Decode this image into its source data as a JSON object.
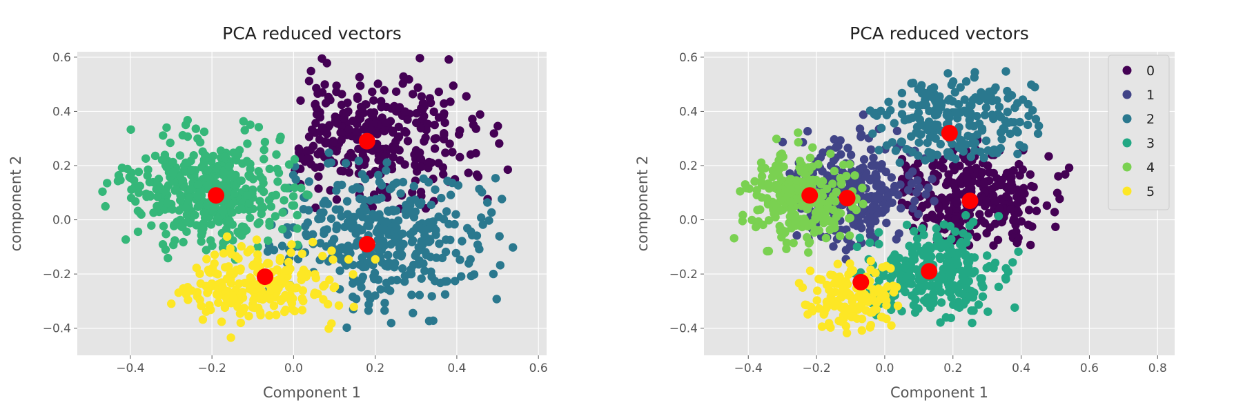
{
  "chart_data": [
    {
      "type": "scatter",
      "title": "PCA reduced vectors",
      "xlabel": "Component 1",
      "ylabel": "component 2",
      "xlim": [
        -0.53,
        0.62
      ],
      "ylim": [
        -0.5,
        0.62
      ],
      "xticks": [
        "−0.4",
        "−0.2",
        "0.0",
        "0.2",
        "0.4",
        "0.6"
      ],
      "xtick_values": [
        -0.4,
        -0.2,
        0.0,
        0.2,
        0.4,
        0.6
      ],
      "yticks": [
        "−0.4",
        "−0.2",
        "0.0",
        "0.2",
        "0.4",
        "0.6"
      ],
      "ytick_values": [
        -0.4,
        -0.2,
        0.0,
        0.2,
        0.4,
        0.6
      ],
      "grid": true,
      "legend": null,
      "clusters": [
        {
          "color": "#440154",
          "center": [
            0.2,
            0.32
          ],
          "spread": [
            0.13,
            0.12
          ],
          "n": 320,
          "clip": [
            0.0,
            0.55,
            0.03,
            0.6
          ]
        },
        {
          "color": "#2a788e",
          "center": [
            0.22,
            -0.06
          ],
          "spread": [
            0.13,
            0.12
          ],
          "n": 360,
          "clip": [
            -0.08,
            0.55,
            -0.4,
            0.25
          ]
        },
        {
          "color": "#35b779",
          "center": [
            -0.21,
            0.1
          ],
          "spread": [
            0.1,
            0.1
          ],
          "n": 420,
          "clip": [
            -0.48,
            0.08,
            -0.15,
            0.48
          ]
        },
        {
          "color": "#fde725",
          "center": [
            -0.1,
            -0.25
          ],
          "spread": [
            0.1,
            0.07
          ],
          "n": 230,
          "clip": [
            -0.3,
            0.25,
            -0.44,
            -0.05
          ]
        }
      ],
      "centroids": [
        [
          0.18,
          0.29
        ],
        [
          -0.19,
          0.09
        ],
        [
          0.18,
          -0.09
        ],
        [
          -0.07,
          -0.21
        ]
      ],
      "centroid_color": "#ff0000"
    },
    {
      "type": "scatter",
      "title": "PCA reduced vectors",
      "xlabel": "Component 1",
      "ylabel": "component 2",
      "xlim": [
        -0.53,
        0.85
      ],
      "ylim": [
        -0.5,
        0.62
      ],
      "xticks": [
        "−0.4",
        "−0.2",
        "0.0",
        "0.2",
        "0.4",
        "0.6",
        "0.8"
      ],
      "xtick_values": [
        -0.4,
        -0.2,
        0.0,
        0.2,
        0.4,
        0.6,
        0.8
      ],
      "yticks": [
        "−0.4",
        "−0.2",
        "0.0",
        "0.2",
        "0.4",
        "0.6"
      ],
      "ytick_values": [
        -0.4,
        -0.2,
        0.0,
        0.2,
        0.4,
        0.6
      ],
      "grid": true,
      "legend": "top-right",
      "series": [
        {
          "name": "0",
          "color": "#440154"
        },
        {
          "name": "1",
          "color": "#414487"
        },
        {
          "name": "2",
          "color": "#2a788e"
        },
        {
          "name": "3",
          "color": "#22a884"
        },
        {
          "name": "4",
          "color": "#7ad151"
        },
        {
          "name": "5",
          "color": "#fde725"
        }
      ],
      "clusters": [
        {
          "series": "0",
          "color": "#440154",
          "center": [
            0.25,
            0.08
          ],
          "spread": [
            0.12,
            0.1
          ],
          "n": 300,
          "clip": [
            0.05,
            0.56,
            -0.15,
            0.3
          ]
        },
        {
          "series": "1",
          "color": "#414487",
          "center": [
            -0.1,
            0.1
          ],
          "spread": [
            0.11,
            0.1
          ],
          "n": 260,
          "clip": [
            -0.3,
            0.15,
            -0.2,
            0.4
          ]
        },
        {
          "series": "2",
          "color": "#2a788e",
          "center": [
            0.2,
            0.36
          ],
          "spread": [
            0.12,
            0.08
          ],
          "n": 220,
          "clip": [
            -0.05,
            0.5,
            0.2,
            0.58
          ]
        },
        {
          "series": "3",
          "color": "#22a884",
          "center": [
            0.13,
            -0.2
          ],
          "spread": [
            0.1,
            0.08
          ],
          "n": 300,
          "clip": [
            -0.1,
            0.4,
            -0.43,
            0.05
          ]
        },
        {
          "series": "4",
          "color": "#7ad151",
          "center": [
            -0.25,
            0.08
          ],
          "spread": [
            0.08,
            0.09
          ],
          "n": 240,
          "clip": [
            -0.45,
            0.0,
            -0.15,
            0.45
          ]
        },
        {
          "series": "5",
          "color": "#fde725",
          "center": [
            -0.09,
            -0.3
          ],
          "spread": [
            0.07,
            0.06
          ],
          "n": 140,
          "clip": [
            -0.3,
            0.05,
            -0.43,
            -0.15
          ]
        }
      ],
      "centroids": [
        [
          0.19,
          0.32
        ],
        [
          -0.22,
          0.09
        ],
        [
          -0.11,
          0.08
        ],
        [
          0.25,
          0.07
        ],
        [
          0.13,
          -0.19
        ],
        [
          -0.07,
          -0.23
        ]
      ],
      "centroid_color": "#ff0000"
    }
  ]
}
